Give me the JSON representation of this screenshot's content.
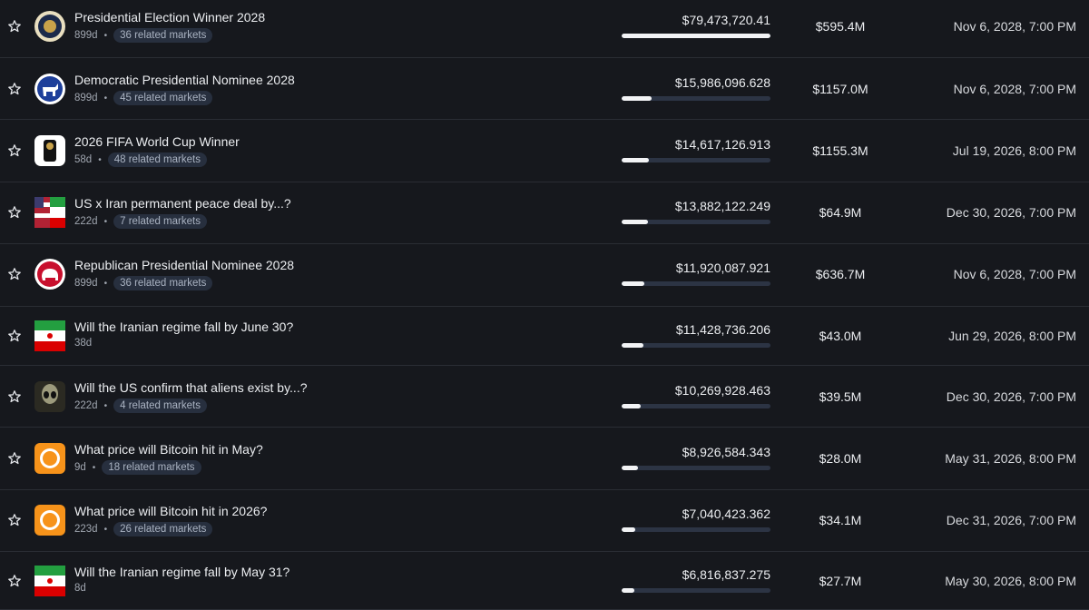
{
  "rows": [
    {
      "title": "Presidential Election Winner 2028",
      "days": "899d",
      "related": "36 related markets",
      "volume": 79473720.41,
      "volume_label": "$79,473,720.41",
      "liquidity": "$595.4M",
      "end_date": "Nov 6, 2028, 7:00 PM"
    },
    {
      "title": "Democratic Presidential Nominee 2028",
      "days": "899d",
      "related": "45 related markets",
      "volume": 15986096.628,
      "volume_label": "$15,986,096.628",
      "liquidity": "$1157.0M",
      "end_date": "Nov 6, 2028, 7:00 PM"
    },
    {
      "title": "2026 FIFA World Cup Winner",
      "days": "58d",
      "related": "48 related markets",
      "volume": 14617126.913,
      "volume_label": "$14,617,126.913",
      "liquidity": "$1155.3M",
      "end_date": "Jul 19, 2026, 8:00 PM"
    },
    {
      "title": "US x Iran permanent peace deal by...?",
      "days": "222d",
      "related": "7 related markets",
      "volume": 13882122.249,
      "volume_label": "$13,882,122.249",
      "liquidity": "$64.9M",
      "end_date": "Dec 30, 2026, 7:00 PM"
    },
    {
      "title": "Republican Presidential Nominee 2028",
      "days": "899d",
      "related": "36 related markets",
      "volume": 11920087.921,
      "volume_label": "$11,920,087.921",
      "liquidity": "$636.7M",
      "end_date": "Nov 6, 2028, 7:00 PM"
    },
    {
      "title": "Will the Iranian regime fall by June 30?",
      "days": "38d",
      "volume": 11428736.206,
      "volume_label": "$11,428,736.206",
      "liquidity": "$43.0M",
      "end_date": "Jun 29, 2026, 8:00 PM"
    },
    {
      "title": "Will the US confirm that aliens exist by...?",
      "days": "222d",
      "related": "4 related markets",
      "volume": 10269928.463,
      "volume_label": "$10,269,928.463",
      "liquidity": "$39.5M",
      "end_date": "Dec 30, 2026, 7:00 PM"
    },
    {
      "title": "What price will Bitcoin hit in May?",
      "days": "9d",
      "related": "18 related markets",
      "volume": 8926584.343,
      "volume_label": "$8,926,584.343",
      "liquidity": "$28.0M",
      "end_date": "May 31, 2026, 8:00 PM"
    },
    {
      "title": "What price will Bitcoin hit in 2026?",
      "days": "223d",
      "related": "26 related markets",
      "volume": 7040423.362,
      "volume_label": "$7,040,423.362",
      "liquidity": "$34.1M",
      "end_date": "Dec 31, 2026, 7:00 PM"
    },
    {
      "title": "Will the Iranian regime fall by May 31?",
      "days": "8d",
      "volume": 6816837.275,
      "volume_label": "$6,816,837.275",
      "liquidity": "$27.7M",
      "end_date": "May 30, 2026, 8:00 PM"
    }
  ]
}
